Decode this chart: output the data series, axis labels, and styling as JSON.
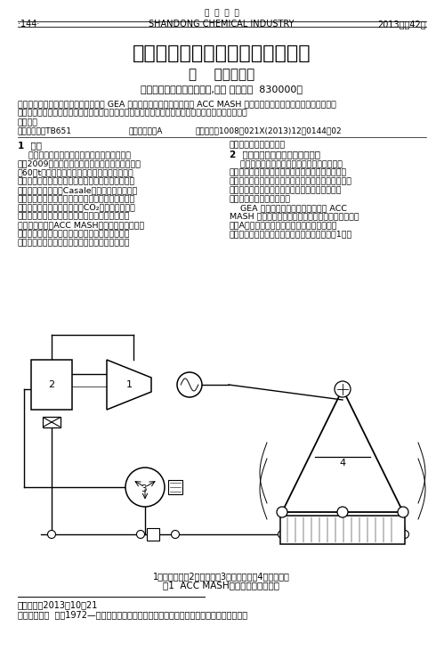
{
  "bg_color": "#ffffff",
  "header_top": "山  东  化  工",
  "header_left": "·144·",
  "header_center": "SHANDONG CHEMICAL INDUSTRY",
  "header_right": "2013年第42卷",
  "title": "直接空冷机组空冷岛运行优化方案",
  "authors": "李    勇，郭良军",
  "affiliation": "（兖矿新疆煎化工有限公司,新疆 乌鲁木齐  830000）",
  "abstract_line1": "摘要：本公司采用的直接空冷凝汽器为 GEA 巴蒂尼奥热能技术有限公司的 ACC MASH 系统。通过机组一年的运行，针对机组在",
  "abstract_line2": "夏季，冬季运行时出现的问题，对该套直接空冷机组进行了性能的优化，并作出相应的技术改造措施。",
  "keywords": "关键词：",
  "classif": "中图分类号：TB651",
  "docid": "文献标识码：A",
  "artno": "文章编号：1008－021X(2013)12－0144－02",
  "sec1_title": "1  前言",
  "sec1_lines": [
    "    兖矿集团为积极响应国家西部大开发的发展战",
    "略，2009年成立了兖矿新疆煎化有限公司，负责年",
    "产60万t醒氨联产项目。合成氨、甲醇装置采用四",
    "噴嘴对置式气化，中温耗硫变换、净化低温甲醇洗、",
    "液氨洗；氨合成采用Casale公司的轴径向氨合成",
    "塔；甲醇合成工艺采用低压气相合成甲醇工艺，甲醇",
    "精馏采用三塔工艺；尿素采用CO₂气提法工艺。为",
    "节约能源，空分空压机组汽轮机蒸汽采用了空冷系",
    "统。本文概述了ACC MASH空冷系统以新建装置",
    "在不同季节运行过程中出现的问题为例加以叙述，",
    "提出了问题分析过程及经验性处理总结，供同类型"
  ],
  "sec2_top": "化工企业进行参考借鉴。",
  "sec2_title": "2  空冷机组受环境影响的运行分析",
  "sec2_lines": [
    "    空冷式换热器是利用风扇采用风冷却翅片管内",
    "的热介质，大量的热能通过翅片得到交换，其广泛使",
    "用于化工、石化、炼油厂、电站、钉厂。使用空气不仅",
    "是一种低成本的选择，同时也可以减少对水资源的",
    "污染浪费，有利保护环境。",
    "    GEA 巴蒂尼奥热能有限公司设计的 ACC",
    "MASH 系统，它主要是基于铝翅片管的设计，这种结",
    "构由A字形的钉结构支撑，并装配有包括冷凝液",
    "筱、风机、泵和控制系统在内的真空系统（如图1）。"
  ],
  "fig_cap1": "1：汽轮机组；2：闪蕊罐；3：冷凝液罐；4：空冷机组",
  "fig_cap2": "图1  ACC MASH直接空冷凝汽器系统",
  "footer_line1": "收稿日期：2013－10－21",
  "footer_line2": "作者简介：李  勇（1972—），山东滕州人，大学本科，助理工程师，现从事设备管理工作。"
}
